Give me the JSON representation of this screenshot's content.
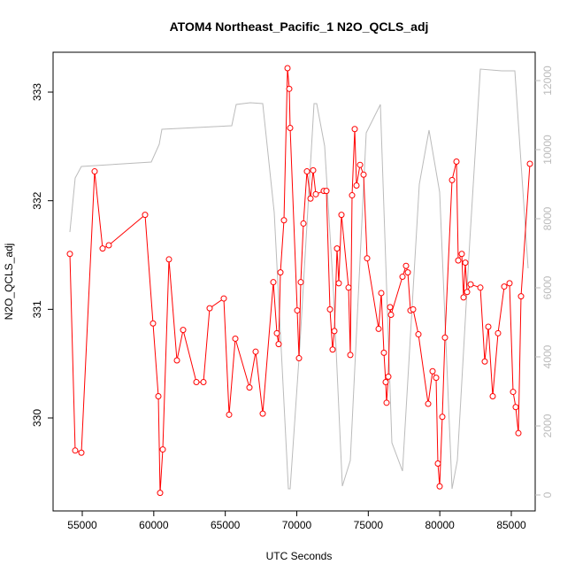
{
  "chart_data": {
    "type": "line",
    "title": "ATOM4 Northeast_Pacific_1 N2O_QCLS_adj",
    "x_label": "UTC Seconds",
    "y_label": "N2O_QCLS_adj",
    "xlim": [
      52959,
      86670
    ],
    "xticks": [
      55000,
      60000,
      65000,
      70000,
      75000,
      80000,
      85000
    ],
    "ylim": [
      329.144,
      333.367
    ],
    "yticks": [
      330,
      331,
      332,
      333
    ],
    "y2lim": [
      -462,
      12821
    ],
    "y2ticks": [
      0,
      2000,
      4000,
      6000,
      8000,
      10000,
      12000
    ],
    "series": [
      {
        "color": "#bbbbbb",
        "axis": "y2",
        "markers": false,
        "x": [
          54134,
          54505,
          54938,
          59825,
          60381,
          60567,
          65453,
          65763,
          66753,
          67619,
          68423,
          69412,
          69536,
          70216,
          71206,
          71392,
          71948,
          72567,
          73186,
          73742,
          74855,
          75845,
          76649,
          77392,
          78567,
          79247,
          79990,
          80856,
          81227,
          82093,
          82835,
          84320,
          85247,
          86175
        ],
        "values": [
          7615,
          9179,
          9513,
          9641,
          10154,
          10590,
          10692,
          11308,
          11359,
          11333,
          8179,
          179,
          179,
          4333,
          11333,
          11333,
          10103,
          5872,
          256,
          1000,
          10487,
          11308,
          1513,
          692,
          9000,
          10564,
          8769,
          179,
          1000,
          7333,
          12333,
          12282,
          12282,
          6564
        ]
      },
      {
        "color": "#ff0000",
        "axis": "y",
        "markers": true,
        "x": [
          54134,
          54505,
          54938,
          55866,
          56423,
          56856,
          59392,
          59948,
          60320,
          60443,
          60629,
          61062,
          61619,
          62052,
          62979,
          63474,
          63907,
          64897,
          65268,
          65701,
          66691,
          67124,
          67619,
          68361,
          68609,
          68732,
          68856,
          69103,
          69351,
          69474,
          69536,
          70031,
          70155,
          70278,
          70464,
          70711,
          70959,
          71144,
          71330,
          71887,
          72072,
          72320,
          72505,
          72629,
          72814,
          72938,
          73124,
          73619,
          73743,
          73866,
          74052,
          74175,
          74423,
          74670,
          74918,
          75722,
          75907,
          76093,
          76216,
          76278,
          76402,
          76526,
          76588,
          77392,
          77639,
          77763,
          77948,
          78134,
          78505,
          79186,
          79495,
          79742,
          79866,
          79990,
          80175,
          80361,
          80856,
          81165,
          81289,
          81536,
          81660,
          81784,
          81907,
          82155,
          82835,
          83144,
          83392,
          83701,
          84072,
          84505,
          84876,
          85124,
          85309,
          85495,
          85680,
          86299
        ],
        "values": [
          331.51,
          329.7,
          329.68,
          332.27,
          331.56,
          331.59,
          331.87,
          330.87,
          330.2,
          329.31,
          329.71,
          331.46,
          330.53,
          330.81,
          330.33,
          330.33,
          331.01,
          331.1,
          330.03,
          330.73,
          330.28,
          330.61,
          330.04,
          331.25,
          330.78,
          330.68,
          331.34,
          331.82,
          333.22,
          333.03,
          332.67,
          330.99,
          330.55,
          331.25,
          331.79,
          332.27,
          332.02,
          332.28,
          332.06,
          332.09,
          332.09,
          331.0,
          330.63,
          330.8,
          331.56,
          331.24,
          331.87,
          331.2,
          330.58,
          332.05,
          332.66,
          332.14,
          332.33,
          332.24,
          331.47,
          330.82,
          331.15,
          330.6,
          330.33,
          330.14,
          330.38,
          331.02,
          330.95,
          331.3,
          331.4,
          331.34,
          330.99,
          331.0,
          330.77,
          330.13,
          330.43,
          330.37,
          329.58,
          329.37,
          330.01,
          330.74,
          332.19,
          332.36,
          331.45,
          331.51,
          331.11,
          331.43,
          331.16,
          331.23,
          331.2,
          330.52,
          330.84,
          330.2,
          330.78,
          331.21,
          331.24,
          330.24,
          330.1,
          329.86,
          331.12,
          332.34
        ]
      }
    ]
  }
}
